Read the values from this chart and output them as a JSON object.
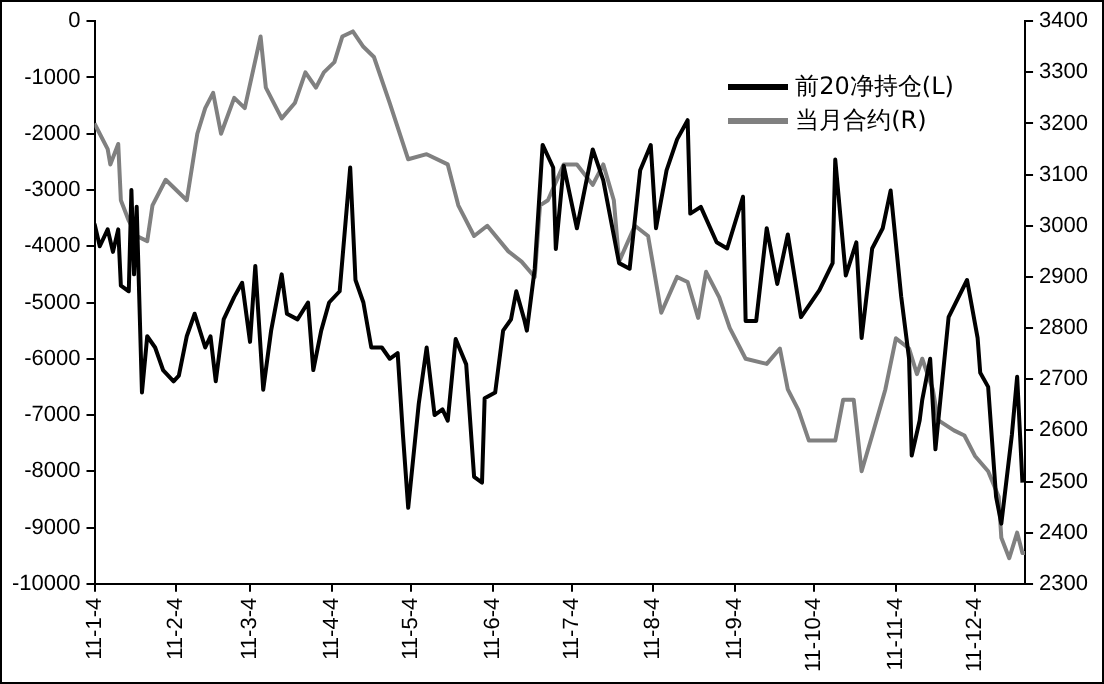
{
  "chart_data": {
    "type": "line",
    "legend": "top right",
    "grid": false,
    "marker": "none",
    "line_style": "solid",
    "xlim": [
      "2011-01-04",
      "2011-12-23"
    ],
    "xticks": [
      {
        "value": "2011-01-04",
        "label": "11-1-4"
      },
      {
        "value": "2011-02-04",
        "label": "11-2-4"
      },
      {
        "value": "2011-03-04",
        "label": "11-3-4"
      },
      {
        "value": "2011-04-04",
        "label": "11-4-4"
      },
      {
        "value": "2011-05-04",
        "label": "11-5-4"
      },
      {
        "value": "2011-06-04",
        "label": "11-6-4"
      },
      {
        "value": "2011-07-04",
        "label": "11-7-4"
      },
      {
        "value": "2011-08-04",
        "label": "11-8-4"
      },
      {
        "value": "2011-09-04",
        "label": "11-9-4"
      },
      {
        "value": "2011-10-04",
        "label": "11-10-4"
      },
      {
        "value": "2011-11-04",
        "label": "11-11-4"
      },
      {
        "value": "2011-12-04",
        "label": "11-12-4"
      }
    ],
    "ylim": [
      -10000,
      0
    ],
    "yticks": [
      -10000,
      -9000,
      -8000,
      -7000,
      -6000,
      -5000,
      -4000,
      -3000,
      -2000,
      -1000,
      0
    ],
    "y2lim": [
      2300,
      3400
    ],
    "y2ticks": [
      2300,
      2400,
      2500,
      2600,
      2700,
      2800,
      2900,
      3000,
      3100,
      3200,
      3300,
      3400
    ],
    "series": [
      {
        "name": "前20净持仓(L)",
        "color": "#000000",
        "x": [
          "2011-01-04",
          "2011-01-06",
          "2011-01-09",
          "2011-01-11",
          "2011-01-13",
          "2011-01-14",
          "2011-01-17",
          "2011-01-18",
          "2011-01-19",
          "2011-01-20",
          "2011-01-22",
          "2011-01-24",
          "2011-01-27",
          "2011-01-30",
          "2011-02-03",
          "2011-02-05",
          "2011-02-08",
          "2011-02-11",
          "2011-02-15",
          "2011-02-17",
          "2011-02-19",
          "2011-02-22",
          "2011-02-26",
          "2011-03-01",
          "2011-03-04",
          "2011-03-06",
          "2011-03-09",
          "2011-03-12",
          "2011-03-16",
          "2011-03-18",
          "2011-03-22",
          "2011-03-26",
          "2011-03-28",
          "2011-03-31",
          "2011-04-03",
          "2011-04-07",
          "2011-04-11",
          "2011-04-13",
          "2011-04-16",
          "2011-04-19",
          "2011-04-23",
          "2011-04-26",
          "2011-04-29",
          "2011-05-01",
          "2011-05-03",
          "2011-05-07",
          "2011-05-10",
          "2011-05-13",
          "2011-05-16",
          "2011-05-18",
          "2011-05-21",
          "2011-05-25",
          "2011-05-28",
          "2011-05-31",
          "2011-06-01",
          "2011-06-05",
          "2011-06-08",
          "2011-06-11",
          "2011-06-13",
          "2011-06-16",
          "2011-06-17",
          "2011-06-20",
          "2011-06-23",
          "2011-06-27",
          "2011-06-28",
          "2011-07-01",
          "2011-07-06",
          "2011-07-12",
          "2011-07-16",
          "2011-07-22",
          "2011-07-26",
          "2011-07-30",
          "2011-08-03",
          "2011-08-05",
          "2011-08-09",
          "2011-08-13",
          "2011-08-17",
          "2011-08-18",
          "2011-08-22",
          "2011-08-28",
          "2011-09-01",
          "2011-09-07",
          "2011-09-08",
          "2011-09-12",
          "2011-09-16",
          "2011-09-20",
          "2011-09-24",
          "2011-09-29",
          "2011-10-06",
          "2011-10-11",
          "2011-10-12",
          "2011-10-16",
          "2011-10-20",
          "2011-10-22",
          "2011-10-26",
          "2011-10-30",
          "2011-11-02",
          "2011-11-06",
          "2011-11-09",
          "2011-11-10",
          "2011-11-13",
          "2011-11-14",
          "2011-11-17",
          "2011-11-19",
          "2011-11-24",
          "2011-12-01",
          "2011-12-05",
          "2011-12-06",
          "2011-12-09",
          "2011-12-12",
          "2011-12-14",
          "2011-12-18",
          "2011-12-20",
          "2011-12-22"
        ],
        "values": [
          -3600,
          -4000,
          -3700,
          -4100,
          -3700,
          -4700,
          -4800,
          -3000,
          -4500,
          -3300,
          -6600,
          -5600,
          -5800,
          -6200,
          -6400,
          -6300,
          -5600,
          -5200,
          -5800,
          -5600,
          -6400,
          -5300,
          -4900,
          -4650,
          -5700,
          -4350,
          -6550,
          -5500,
          -4500,
          -5200,
          -5300,
          -5000,
          -6200,
          -5500,
          -5000,
          -4800,
          -2600,
          -4600,
          -5000,
          -5800,
          -5800,
          -6000,
          -5900,
          -7350,
          -8650,
          -6800,
          -5800,
          -7000,
          -6900,
          -7100,
          -5650,
          -6100,
          -8100,
          -8200,
          -6700,
          -6600,
          -5500,
          -5300,
          -4800,
          -5300,
          -5500,
          -4400,
          -2200,
          -2600,
          -4050,
          -2570,
          -3680,
          -2280,
          -2830,
          -4300,
          -4400,
          -2650,
          -2200,
          -3680,
          -2650,
          -2100,
          -1760,
          -3420,
          -3300,
          -3930,
          -4040,
          -3120,
          -5330,
          -5330,
          -3680,
          -4670,
          -3790,
          -5260,
          -4780,
          -4300,
          -2460,
          -4520,
          -3930,
          -5630,
          -4040,
          -3680,
          -3010,
          -4890,
          -6000,
          -7720,
          -7100,
          -6730,
          -6000,
          -7610,
          -5260,
          -4600,
          -5630,
          -6250,
          -6500,
          -8450,
          -8930,
          -7350,
          -6320,
          -8200
        ]
      },
      {
        "name": "当月合约(R)",
        "color": "#808080",
        "axis": "y2",
        "x": [
          "2011-01-04",
          "2011-01-09",
          "2011-01-10",
          "2011-01-13",
          "2011-01-14",
          "2011-01-17",
          "2011-01-20",
          "2011-01-24",
          "2011-01-26",
          "2011-01-31",
          "2011-02-08",
          "2011-02-12",
          "2011-02-15",
          "2011-02-18",
          "2011-02-21",
          "2011-02-26",
          "2011-03-02",
          "2011-03-08",
          "2011-03-10",
          "2011-03-16",
          "2011-03-21",
          "2011-03-25",
          "2011-03-29",
          "2011-04-01",
          "2011-04-05",
          "2011-04-08",
          "2011-04-12",
          "2011-04-16",
          "2011-04-20",
          "2011-04-26",
          "2011-05-03",
          "2011-05-10",
          "2011-05-18",
          "2011-05-22",
          "2011-05-28",
          "2011-06-02",
          "2011-06-10",
          "2011-06-15",
          "2011-06-20",
          "2011-06-22",
          "2011-06-25",
          "2011-07-01",
          "2011-07-06",
          "2011-07-12",
          "2011-07-16",
          "2011-07-20",
          "2011-07-22",
          "2011-07-28",
          "2011-08-02",
          "2011-08-07",
          "2011-08-13",
          "2011-08-17",
          "2011-08-21",
          "2011-08-24",
          "2011-08-29",
          "2011-09-02",
          "2011-09-06",
          "2011-09-08",
          "2011-09-16",
          "2011-09-21",
          "2011-09-24",
          "2011-09-28",
          "2011-10-02",
          "2011-10-12",
          "2011-10-15",
          "2011-10-19",
          "2011-10-22",
          "2011-10-26",
          "2011-10-31",
          "2011-11-04",
          "2011-11-09",
          "2011-11-12",
          "2011-11-14",
          "2011-11-18",
          "2011-11-20",
          "2011-11-26",
          "2011-11-30",
          "2011-12-04",
          "2011-12-09",
          "2011-12-13",
          "2011-12-14",
          "2011-12-17",
          "2011-12-20",
          "2011-12-22",
          "2011-12-23"
        ],
        "values": [
          3200,
          3150,
          3120,
          3160,
          3050,
          3010,
          2980,
          2970,
          3040,
          3090,
          3050,
          3180,
          3230,
          3260,
          3180,
          3250,
          3230,
          3370,
          3270,
          3210,
          3240,
          3300,
          3270,
          3300,
          3320,
          3370,
          3380,
          3350,
          3330,
          3240,
          3130,
          3140,
          3120,
          3040,
          2980,
          3000,
          2950,
          2930,
          2900,
          3040,
          3050,
          3120,
          3120,
          3080,
          3120,
          3050,
          2930,
          3000,
          2980,
          2830,
          2900,
          2890,
          2820,
          2910,
          2860,
          2800,
          2760,
          2740,
          2730,
          2760,
          2680,
          2640,
          2580,
          2580,
          2660,
          2660,
          2520,
          2590,
          2680,
          2780,
          2760,
          2710,
          2740,
          2680,
          2620,
          2600,
          2590,
          2550,
          2520,
          2470,
          2390,
          2350,
          2400,
          2360,
          2360
        ]
      }
    ]
  }
}
